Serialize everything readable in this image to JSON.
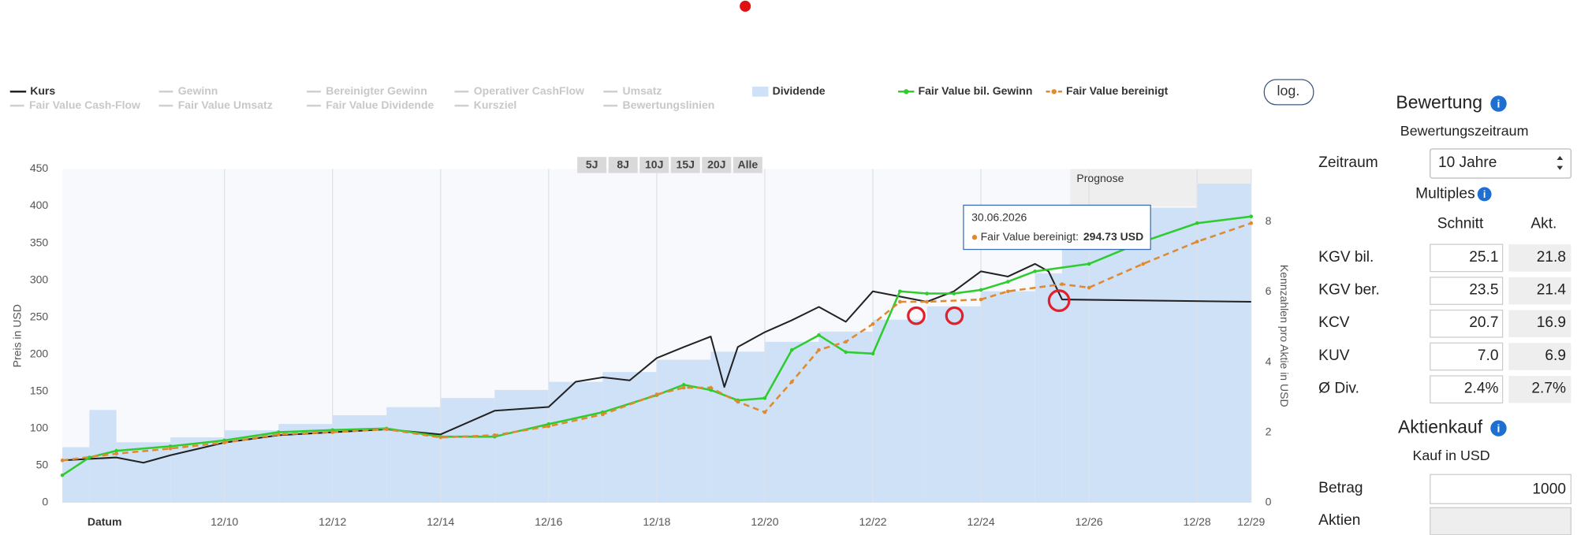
{
  "chart_data": {
    "type": "line",
    "xlabel": "Datum",
    "ylabel": "Preis in USD",
    "y2label": "Kennzahlen pro Aktie in USD",
    "xlim": [
      "12/07",
      "12/29"
    ],
    "xticks": [
      "12/10",
      "12/12",
      "12/14",
      "12/16",
      "12/18",
      "12/20",
      "12/22",
      "12/24",
      "12/26",
      "12/28",
      "12/29"
    ],
    "ylim": [
      0,
      450
    ],
    "yticks": [
      0,
      50,
      100,
      150,
      200,
      250,
      300,
      350,
      400,
      450
    ],
    "y2lim": [
      0,
      9.5
    ],
    "y2ticks": [
      0,
      2,
      4,
      6,
      8
    ],
    "series": [
      {
        "name": "Kurs",
        "color": "#222222",
        "x": [
          "12/07",
          "12/08",
          "06/09",
          "12/09",
          "12/10",
          "12/11",
          "12/12",
          "12/13",
          "12/14",
          "12/15",
          "12/16",
          "06/17",
          "12/17",
          "06/18",
          "12/18",
          "06/19",
          "12/19",
          "03/20",
          "06/20",
          "12/20",
          "06/21",
          "12/21",
          "06/22",
          "12/22",
          "06/23",
          "12/23",
          "06/24",
          "12/24",
          "06/25",
          "12/25",
          "03/26",
          "06/26",
          "12/29"
        ],
        "values": [
          57,
          61,
          54,
          64,
          81,
          91,
          95,
          99,
          92,
          124,
          129,
          163,
          169,
          165,
          195,
          210,
          224,
          156,
          210,
          230,
          246,
          264,
          244,
          285,
          278,
          271,
          285,
          312,
          305,
          322,
          312,
          274,
          271
        ]
      },
      {
        "name": "Dividende",
        "color": "#cfe1f7",
        "axis": "y2",
        "x": [
          "12/07",
          "06/08",
          "12/08",
          "12/09",
          "12/10",
          "12/11",
          "12/12",
          "12/13",
          "12/14",
          "12/15",
          "12/16",
          "12/17",
          "12/18",
          "12/19",
          "12/20",
          "12/21",
          "12/22",
          "12/23",
          "12/24",
          "12/25",
          "06/26",
          "12/28"
        ],
        "values": [
          1.58,
          2.64,
          1.72,
          1.86,
          2.06,
          2.24,
          2.49,
          2.72,
          2.98,
          3.21,
          3.44,
          3.72,
          4.07,
          4.3,
          4.58,
          4.87,
          5.21,
          5.59,
          6.02,
          6.53,
          8.4,
          9.08
        ]
      },
      {
        "name": "Fair Value bil. Gewinn",
        "color": "#2ecc2e",
        "x": [
          "12/07",
          "06/08",
          "12/08",
          "12/09",
          "12/10",
          "12/11",
          "12/12",
          "12/13",
          "12/14",
          "12/15",
          "12/16",
          "12/17",
          "12/18",
          "06/19",
          "12/19",
          "06/20",
          "12/20",
          "06/21",
          "12/21",
          "06/22",
          "12/22",
          "06/23",
          "12/23",
          "06/24",
          "12/24",
          "06/25",
          "12/25",
          "12/26",
          "12/27",
          "12/28",
          "12/29"
        ],
        "values": [
          37,
          61,
          70,
          76,
          84,
          95,
          98,
          100,
          89,
          89,
          106,
          122,
          145,
          159,
          152,
          138,
          141,
          206,
          226,
          203,
          201,
          285,
          282,
          282,
          287,
          298,
          312,
          322,
          352,
          377,
          386
        ]
      },
      {
        "name": "Fair Value bereinigt",
        "color": "#e08a2e",
        "dash": true,
        "x": [
          "12/07",
          "12/08",
          "12/09",
          "12/10",
          "12/11",
          "12/12",
          "12/13",
          "12/14",
          "12/15",
          "12/16",
          "12/17",
          "12/18",
          "06/19",
          "12/19",
          "06/20",
          "12/20",
          "06/21",
          "12/21",
          "06/22",
          "12/22",
          "06/23",
          "12/23",
          "12/24",
          "06/25",
          "06/26",
          "12/26",
          "12/27",
          "12/28",
          "12/29"
        ],
        "values": [
          57,
          66,
          73,
          81,
          92,
          95,
          99,
          88,
          91,
          103,
          119,
          146,
          155,
          155,
          136,
          122,
          163,
          206,
          217,
          241,
          271,
          271,
          274,
          285,
          294.73,
          290,
          322,
          352,
          377
        ]
      }
    ],
    "inactive_series": [
      "Gewinn",
      "Bereinigter Gewinn",
      "Operativer CashFlow",
      "Umsatz",
      "Fair Value Cash-Flow",
      "Fair Value Umsatz",
      "Fair Value Dividende",
      "Kursziel",
      "Bewertungslinien"
    ],
    "range_buttons": [
      "5J",
      "8J",
      "10J",
      "15J",
      "20J",
      "Alle"
    ],
    "log_button": "log.",
    "forecast_label": "Prognose",
    "tooltip": {
      "title": "30.06.2026",
      "label": "Fair Value bereinigt:",
      "value": "294.73 USD"
    }
  },
  "valuation": {
    "title": "Bewertung",
    "subtitle": "Bewertungszeitraum",
    "period_label": "Zeitraum",
    "period_value": "10 Jahre",
    "multiples_title": "Multiples",
    "columns": [
      "Schnitt",
      "Akt."
    ],
    "rows": [
      [
        "KGV bil.",
        "25.1",
        "21.8"
      ],
      [
        "KGV ber.",
        "23.5",
        "21.4"
      ],
      [
        "KCV",
        "20.7",
        "16.9"
      ],
      [
        "KUV",
        "7.0",
        "6.9"
      ],
      [
        "Ø Div.",
        "2.4%",
        "2.7%"
      ]
    ]
  },
  "purchase": {
    "title": "Aktienkauf",
    "subtitle": "Kauf in USD",
    "amount_label": "Betrag",
    "amount_value": "1000",
    "shares_label": "Aktien"
  }
}
